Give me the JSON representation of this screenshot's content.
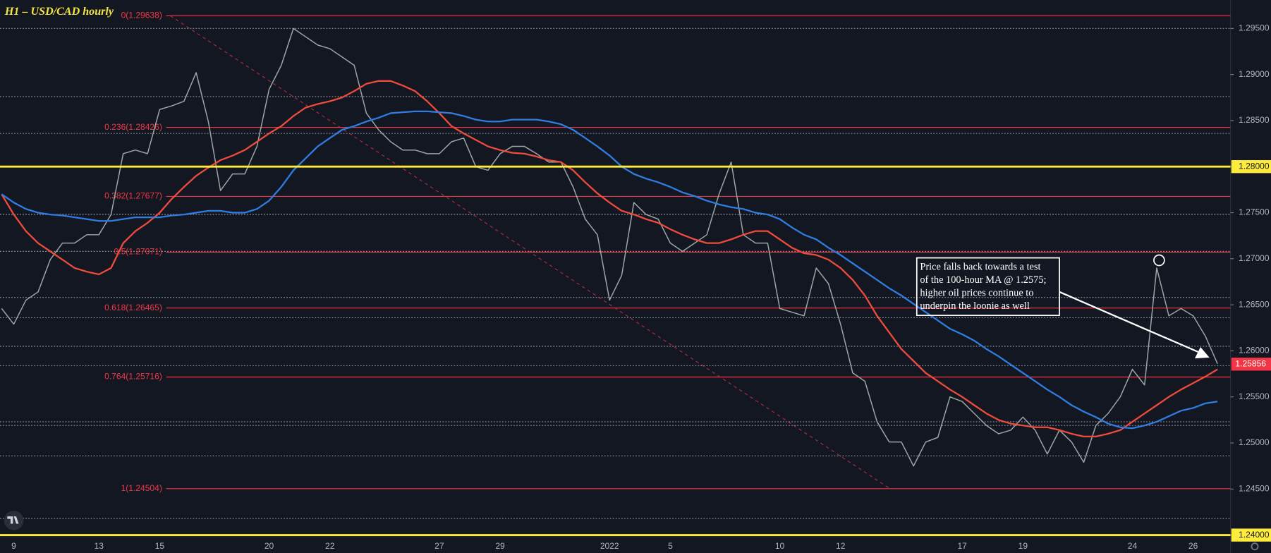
{
  "title": "H1 – USD/CAD hourly",
  "annotation": {
    "lines": [
      "Price falls back towards a test",
      "of the 100-hour MA @ 1.2575;",
      "higher oil prices continue to",
      "underpin the loonie as well"
    ]
  },
  "chart_data": {
    "type": "line",
    "categories": [
      null,
      "9",
      null,
      null,
      null,
      null,
      null,
      null,
      "13",
      null,
      null,
      null,
      null,
      "15",
      null,
      null,
      null,
      null,
      null,
      null,
      null,
      null,
      "20",
      null,
      null,
      null,
      null,
      "22",
      null,
      null,
      null,
      null,
      null,
      null,
      null,
      null,
      "27",
      null,
      null,
      null,
      null,
      "29",
      null,
      null,
      null,
      null,
      null,
      null,
      null,
      null,
      "2022",
      null,
      null,
      null,
      null,
      "5",
      null,
      null,
      null,
      null,
      null,
      null,
      null,
      null,
      "10",
      null,
      null,
      null,
      null,
      "12",
      null,
      null,
      null,
      null,
      null,
      null,
      null,
      null,
      null,
      "17",
      null,
      null,
      null,
      null,
      "19",
      null,
      null,
      null,
      null,
      null,
      null,
      null,
      null,
      "24",
      null,
      null,
      null,
      null,
      "26",
      null,
      null
    ],
    "series": [
      {
        "color": "#9aa7a3",
        "values": [
          1.2646,
          1.2629,
          1.2655,
          1.2664,
          1.2699,
          1.2717,
          1.2717,
          1.2726,
          1.2726,
          1.2748,
          1.2814,
          1.2818,
          1.2814,
          1.2862,
          1.2866,
          1.2871,
          1.2902,
          1.2849,
          1.2774,
          1.2792,
          1.2792,
          1.2822,
          1.2884,
          1.291,
          1.295,
          1.2941,
          1.2932,
          1.2928,
          1.2919,
          1.291,
          1.2858,
          1.284,
          1.2827,
          1.2818,
          1.2818,
          1.2814,
          1.2814,
          1.2827,
          1.2831,
          1.28,
          1.2796,
          1.2814,
          1.2822,
          1.2822,
          1.2814,
          1.2805,
          1.2805,
          1.2778,
          1.2743,
          1.2726,
          1.2655,
          1.2682,
          1.2761,
          1.2748,
          1.2743,
          1.2717,
          1.2708,
          1.2717,
          1.2726,
          1.277,
          1.2805,
          1.2726,
          1.2717,
          1.2717,
          1.2646,
          1.2642,
          1.2638,
          1.269,
          1.2673,
          1.2629,
          1.2576,
          1.2567,
          1.2523,
          1.2501,
          1.2501,
          1.2475,
          1.2501,
          1.2506,
          1.255,
          1.2545,
          1.2532,
          1.2519,
          1.251,
          1.2514,
          1.2528,
          1.2514,
          1.2488,
          1.2514,
          1.2501,
          1.2479,
          1.2519,
          1.2532,
          1.255,
          1.258,
          1.2563,
          1.269,
          1.2638,
          1.2646,
          1.2638,
          1.2616,
          1.2586
        ]
      },
      {
        "color": "#ef4b3c",
        "values": [
          1.277,
          1.2748,
          1.273,
          1.2717,
          1.2708,
          1.2699,
          1.269,
          1.2686,
          1.2683,
          1.269,
          1.2717,
          1.273,
          1.2739,
          1.275,
          1.2765,
          1.2778,
          1.279,
          1.2799,
          1.2807,
          1.2812,
          1.2818,
          1.2827,
          1.2836,
          1.2844,
          1.2855,
          1.2864,
          1.2868,
          1.2871,
          1.2875,
          1.2882,
          1.289,
          1.2893,
          1.2893,
          1.2888,
          1.2882,
          1.2871,
          1.2858,
          1.2844,
          1.2836,
          1.2829,
          1.2822,
          1.2818,
          1.2815,
          1.2814,
          1.2811,
          1.2807,
          1.2805,
          1.2796,
          1.2783,
          1.2771,
          1.2761,
          1.2752,
          1.2748,
          1.2743,
          1.2739,
          1.2732,
          1.2726,
          1.2721,
          1.2717,
          1.2717,
          1.2721,
          1.2726,
          1.273,
          1.273,
          1.2721,
          1.2712,
          1.2706,
          1.2704,
          1.2699,
          1.269,
          1.2677,
          1.266,
          1.2638,
          1.262,
          1.2602,
          1.2589,
          1.2576,
          1.2567,
          1.2558,
          1.255,
          1.2541,
          1.2532,
          1.2525,
          1.2521,
          1.2519,
          1.2517,
          1.2517,
          1.2514,
          1.251,
          1.2507,
          1.2507,
          1.251,
          1.2514,
          1.2523,
          1.2532,
          1.2541,
          1.255,
          1.2558,
          1.2565,
          1.2572,
          1.258
        ]
      },
      {
        "color": "#2f7de1",
        "values": [
          1.277,
          1.2761,
          1.2754,
          1.275,
          1.2748,
          1.2747,
          1.2745,
          1.2743,
          1.2741,
          1.2741,
          1.2743,
          1.2745,
          1.2745,
          1.2745,
          1.2747,
          1.2748,
          1.275,
          1.2752,
          1.2752,
          1.275,
          1.275,
          1.2754,
          1.2763,
          1.2778,
          1.2796,
          1.2809,
          1.2822,
          1.2831,
          1.284,
          1.2844,
          1.2849,
          1.2853,
          1.2858,
          1.2859,
          1.286,
          1.286,
          1.2859,
          1.2858,
          1.2855,
          1.2851,
          1.2849,
          1.2849,
          1.2851,
          1.2851,
          1.2851,
          1.2849,
          1.2846,
          1.284,
          1.2831,
          1.2822,
          1.2812,
          1.28,
          1.2792,
          1.2787,
          1.2783,
          1.2778,
          1.2772,
          1.2768,
          1.2763,
          1.2759,
          1.2756,
          1.2754,
          1.275,
          1.2748,
          1.2743,
          1.2734,
          1.2726,
          1.2721,
          1.2712,
          1.2704,
          1.2695,
          1.2686,
          1.2677,
          1.2668,
          1.266,
          1.2651,
          1.2642,
          1.2633,
          1.2624,
          1.2618,
          1.2611,
          1.2602,
          1.2594,
          1.2585,
          1.2576,
          1.2567,
          1.2558,
          1.255,
          1.2541,
          1.2534,
          1.2528,
          1.2521,
          1.2517,
          1.2516,
          1.2519,
          1.2523,
          1.2529,
          1.2535,
          1.2538,
          1.2543,
          1.2545
        ]
      }
    ],
    "ylim": [
      1.24,
      1.29808
    ],
    "yticks": [
      {
        "value": 1.295,
        "label": "1.29500"
      },
      {
        "value": 1.29,
        "label": "1.29000"
      },
      {
        "value": 1.285,
        "label": "1.28500"
      },
      {
        "value": 1.28,
        "label": "1.28000"
      },
      {
        "value": 1.275,
        "label": "1.27500"
      },
      {
        "value": 1.27,
        "label": "1.27000"
      },
      {
        "value": 1.265,
        "label": "1.26500"
      },
      {
        "value": 1.26,
        "label": "1.26000"
      },
      {
        "value": 1.255,
        "label": "1.25500"
      },
      {
        "value": 1.25,
        "label": "1.25000"
      },
      {
        "value": 1.245,
        "label": "1.24500"
      },
      {
        "value": 1.24,
        "label": "1.24000"
      }
    ],
    "fib_color": "#f23645",
    "fib_levels": [
      {
        "label": "0(1.29638)",
        "value": 1.29638
      },
      {
        "label": "0.236(1.28426)",
        "value": 1.28426
      },
      {
        "label": "0.382(1.27677)",
        "value": 1.27677
      },
      {
        "label": "0.5(1.27071)",
        "value": 1.27071
      },
      {
        "label": "0.618(1.26465)",
        "value": 1.26465
      },
      {
        "label": "0.764(1.25716)",
        "value": 1.25716
      },
      {
        "label": "1(1.24504)",
        "value": 1.24504
      }
    ],
    "horizontal_lines": [
      {
        "value": 1.28,
        "color": "#ffeb3b"
      },
      {
        "value": 1.24,
        "color": "#ffeb3b"
      }
    ],
    "dotted_levels": [
      1.295,
      1.2876,
      1.2836,
      1.2748,
      1.2708,
      1.2658,
      1.2636,
      1.2605,
      1.2584,
      1.2523,
      1.2519,
      1.2486,
      1.2418
    ],
    "last_price": 1.25856,
    "last_price_color": "#f23645"
  }
}
